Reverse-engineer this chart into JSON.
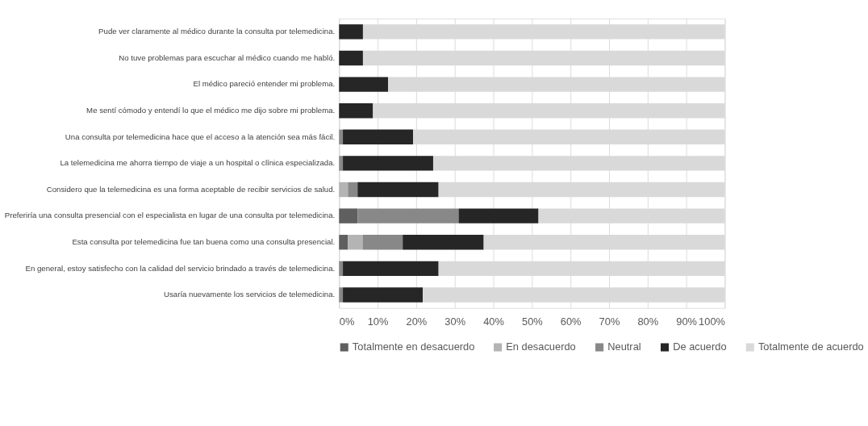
{
  "chart_data": {
    "type": "bar",
    "orientation": "horizontal",
    "stacked": true,
    "categories": [
      "Pude ver claramente al médico durante la consulta por telemedicina.",
      "No tuve problemas para escuchar al médico cuando me habló.",
      "El médico pareció entender mi problema.",
      "Me sentí cómodo y entendí lo que el médico me dijo sobre mi problema.",
      "Una consulta por telemedicina hace que el acceso a la atención sea más fácil.",
      "La telemedicina me ahorra tiempo de viaje a un hospital o clínica especializada.",
      "Considero que la telemedicina es una forma aceptable de recibir servicios de salud.",
      "Preferiría una consulta presencial con el especialista en lugar de una consulta por telemedicina.",
      "Esta consulta por telemedicina fue tan buena como una consulta presencial.",
      "En general, estoy satisfecho con la calidad del servicio brindado a través de telemedicina.",
      "Usaría nuevamente los servicios de telemedicina."
    ],
    "series": [
      {
        "name": "Totalmente en desacuerdo",
        "color": "#5f5f5f",
        "values": [
          0,
          0,
          0,
          0,
          0,
          0,
          0,
          4.8,
          2.3,
          0,
          0
        ]
      },
      {
        "name": "En desacuerdo",
        "color": "#b4b4b4",
        "values": [
          0,
          0,
          0,
          0,
          0,
          0,
          2.3,
          0,
          3.8,
          0,
          0
        ]
      },
      {
        "name": "Neutral",
        "color": "#888888",
        "values": [
          0,
          0,
          0,
          0,
          1.0,
          1.0,
          2.5,
          26.2,
          10.4,
          1.0,
          1.0
        ]
      },
      {
        "name": "De acuerdo",
        "color": "#262626",
        "values": [
          6.2,
          6.2,
          12.7,
          8.8,
          18.2,
          23.4,
          21.0,
          20.7,
          21.0,
          24.8,
          20.7
        ]
      },
      {
        "name": "Totalmente de acuerdo",
        "color": "#d9d9d9",
        "values": [
          93.8,
          93.8,
          87.3,
          91.2,
          80.8,
          75.6,
          74.2,
          48.3,
          62.5,
          74.2,
          78.3
        ]
      }
    ],
    "xlim": [
      0,
      100
    ],
    "xticks": [
      {
        "value": 0,
        "label": "0%"
      },
      {
        "value": 10,
        "label": "10%"
      },
      {
        "value": 20,
        "label": "20%"
      },
      {
        "value": 30,
        "label": "30%"
      },
      {
        "value": 40,
        "label": "40%"
      },
      {
        "value": 50,
        "label": "50%"
      },
      {
        "value": 60,
        "label": "60%"
      },
      {
        "value": 70,
        "label": "70%"
      },
      {
        "value": 80,
        "label": "80%"
      },
      {
        "value": 90,
        "label": "90%"
      },
      {
        "value": 100,
        "label": "100%"
      }
    ],
    "grid": "x",
    "legend": "bottom"
  }
}
